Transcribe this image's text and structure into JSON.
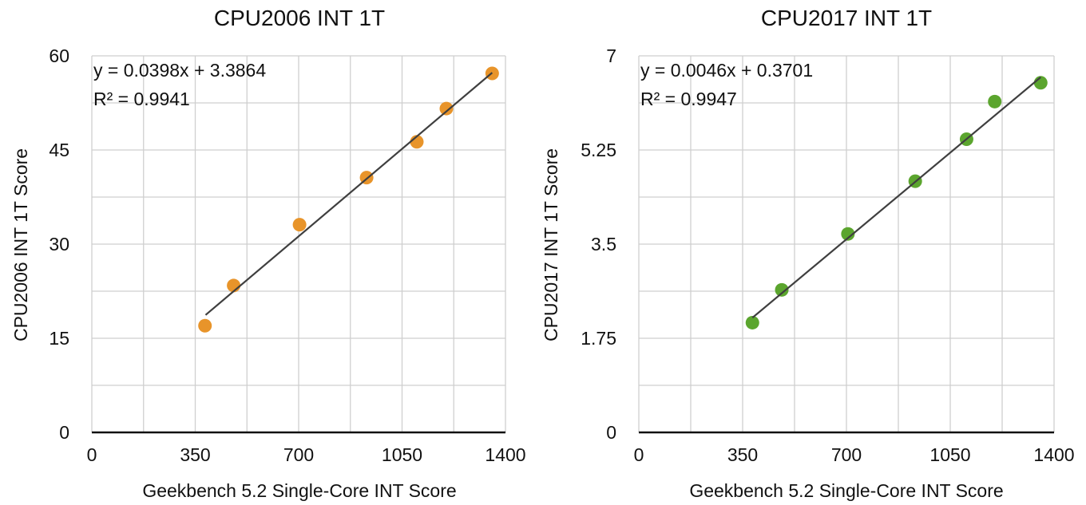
{
  "chart_data": [
    {
      "type": "scatter",
      "title": "CPU2006 INT 1T",
      "xlabel": "Geekbench 5.2 Single-Core INT Score",
      "ylabel": "CPU2006 INT 1T Score",
      "xlim": [
        0,
        1400
      ],
      "ylim": [
        0,
        60
      ],
      "xticks": [
        "0",
        "350",
        "700",
        "1050",
        "1400"
      ],
      "yticks": [
        "0",
        "15",
        "30",
        "45",
        "60"
      ],
      "grid": true,
      "marker_color": "#E8942A",
      "trendline": {
        "slope": 0.0398,
        "intercept": 3.3864,
        "x_range": [
          385,
          1355
        ]
      },
      "equation_text": "y = 0.0398x + 3.3864",
      "r2_text": "R² = 0.9941",
      "series": [
        {
          "x": [
            383,
            480,
            703,
            930,
            1100,
            1200,
            1355
          ],
          "y": [
            17.0,
            23.4,
            33.1,
            40.6,
            46.3,
            51.6,
            57.2
          ]
        }
      ]
    },
    {
      "type": "scatter",
      "title": "CPU2017 INT 1T",
      "xlabel": "Geekbench 5.2 Single-Core INT Score",
      "ylabel": "CPU2017 INT 1T Score",
      "xlim": [
        0,
        1400
      ],
      "ylim": [
        0,
        7
      ],
      "xticks": [
        "0",
        "350",
        "700",
        "1050",
        "1400"
      ],
      "yticks": [
        "0",
        "1.75",
        "3.5",
        "5.25",
        "7"
      ],
      "grid": true,
      "marker_color": "#5BA52E",
      "trendline": {
        "slope": 0.0046,
        "intercept": 0.3701,
        "x_range": [
          383,
          1355
        ]
      },
      "equation_text": "y = 0.0046x + 0.3701",
      "r2_text": "R² = 0.9947",
      "series": [
        {
          "x": [
            383,
            482,
            705,
            932,
            1105,
            1200,
            1355
          ],
          "y": [
            2.04,
            2.65,
            3.69,
            4.67,
            5.45,
            6.15,
            6.5
          ]
        }
      ]
    }
  ]
}
